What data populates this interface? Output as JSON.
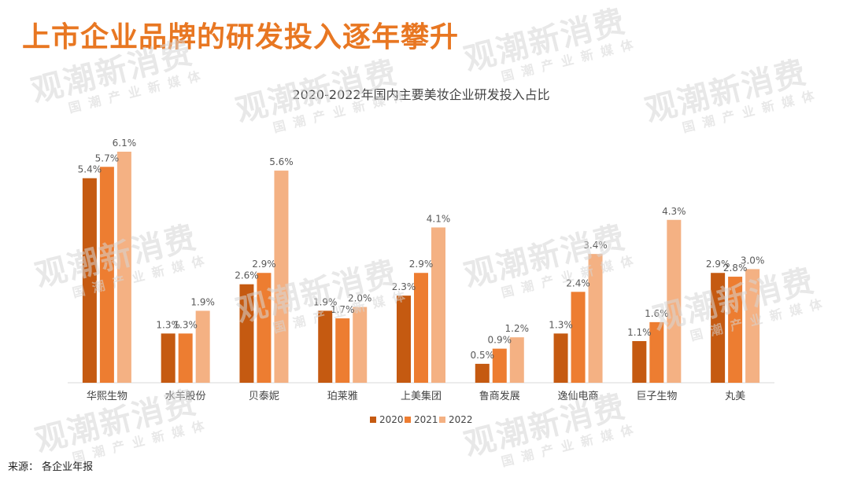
{
  "page": {
    "title": "上市企业品牌的研发投入逐年攀升",
    "source": "来源： 各企业年报",
    "watermark": {
      "main": "观潮新消费",
      "sub": "国潮产业新媒体"
    }
  },
  "colors": {
    "title": "#e87722",
    "series": [
      "#c55a11",
      "#ed7d31",
      "#f4b183"
    ]
  },
  "chart_data": {
    "type": "bar",
    "title": "2020-2022年国内主要美妆企业研发投入占比",
    "categories": [
      "华熙生物",
      "水羊股份",
      "贝泰妮",
      "珀莱雅",
      "上美集团",
      "鲁商发展",
      "逸仙电商",
      "巨子生物",
      "丸美"
    ],
    "series": [
      {
        "name": "2020",
        "values": [
          5.4,
          1.3,
          2.6,
          1.9,
          2.3,
          0.5,
          1.3,
          1.1,
          2.9
        ],
        "labels": [
          "5.4%",
          "1.3%",
          "2.6%",
          "1.9%",
          "2.3%",
          "0.5%",
          "1.3%",
          "1.1%",
          "2.9%"
        ]
      },
      {
        "name": "2021",
        "values": [
          5.7,
          1.3,
          2.9,
          1.7,
          2.9,
          0.9,
          2.4,
          1.6,
          2.8
        ],
        "labels": [
          "5.7%",
          "1.3%",
          "2.9%",
          "1.7%",
          "2.9%",
          "0.9%",
          "2.4%",
          "1.6%",
          "2.8%"
        ]
      },
      {
        "name": "2022",
        "values": [
          6.1,
          1.9,
          5.6,
          2.0,
          4.1,
          1.2,
          3.4,
          4.3,
          3.0
        ],
        "labels": [
          "6.1%",
          "1.9%",
          "5.6%",
          "2.0%",
          "4.1%",
          "1.2%",
          "3.4%",
          "4.3%",
          "3.0%"
        ]
      }
    ],
    "ylim": [
      0,
      6.1
    ],
    "grid": false,
    "legend": "bottom"
  }
}
